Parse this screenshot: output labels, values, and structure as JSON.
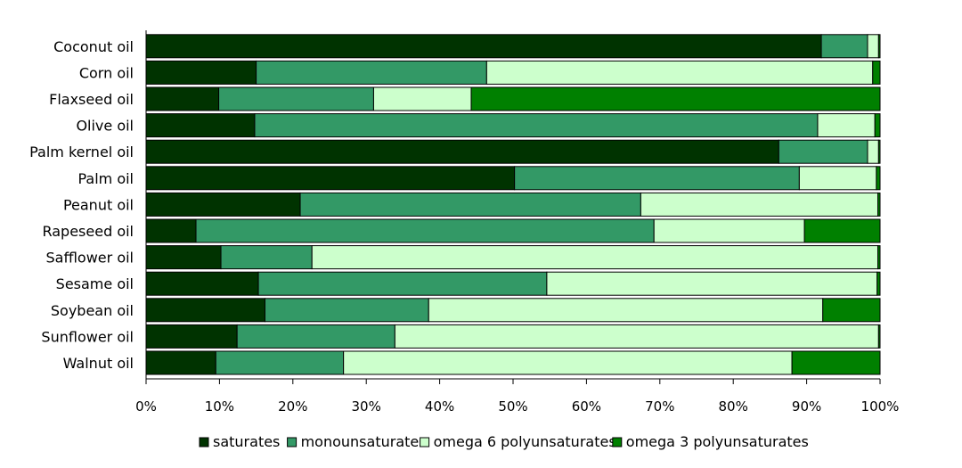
{
  "chart_data": {
    "type": "bar",
    "orientation": "horizontal",
    "stacked": "percent",
    "title": "",
    "xlabel": "",
    "ylabel": "",
    "xlim": [
      0,
      100
    ],
    "x_ticks": [
      "0%",
      "10%",
      "20%",
      "30%",
      "40%",
      "50%",
      "60%",
      "70%",
      "80%",
      "90%",
      "100%"
    ],
    "legend_position": "bottom",
    "categories": [
      "Coconut oil",
      "Corn oil",
      "Flaxseed oil",
      "Olive oil",
      "Palm kernel oil",
      "Palm oil",
      "Peanut oil",
      "Rapeseed oil",
      "Safflower oil",
      "Sesame oil",
      "Soybean oil",
      "Sunflower oil",
      "Walnut oil"
    ],
    "series": [
      {
        "name": "saturates",
        "color": "#003300",
        "values": [
          92.0,
          15.0,
          9.9,
          14.8,
          86.2,
          50.2,
          21.0,
          6.8,
          10.2,
          15.3,
          16.2,
          12.4,
          9.5
        ]
      },
      {
        "name": "monounsaturates",
        "color": "#339966",
        "values": [
          6.3,
          31.4,
          21.1,
          76.7,
          12.1,
          38.8,
          46.4,
          62.4,
          12.4,
          39.3,
          22.3,
          21.5,
          17.4
        ]
      },
      {
        "name": "omega 6 polyunsaturates",
        "color": "#ccffcc",
        "values": [
          1.5,
          52.6,
          13.3,
          7.8,
          1.5,
          10.5,
          32.3,
          20.5,
          77.1,
          45.0,
          53.7,
          65.9,
          61.1
        ]
      },
      {
        "name": "omega 3 polyunsaturates",
        "color": "#008000",
        "values": [
          0.2,
          1.0,
          55.7,
          0.7,
          0.2,
          0.5,
          0.3,
          10.3,
          0.3,
          0.4,
          7.8,
          0.2,
          12.0
        ]
      }
    ]
  }
}
